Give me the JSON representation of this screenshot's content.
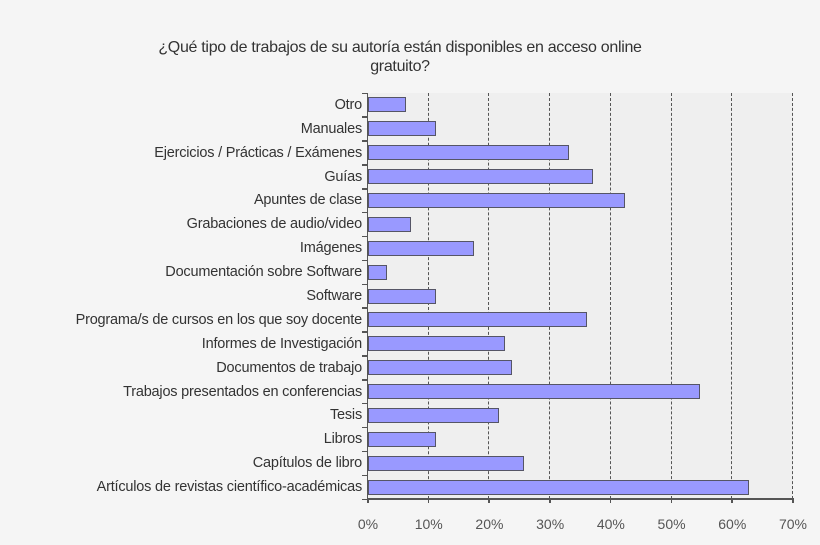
{
  "chart_data": {
    "type": "bar",
    "orientation": "horizontal",
    "title": "¿Qué tipo de trabajos de su autoría están disponibles en acceso online gratuito?",
    "title_lines": [
      "¿Qué tipo de trabajos de su autoría están disponibles en acceso online",
      "gratuito?"
    ],
    "xlabel": "",
    "ylabel": "",
    "xlim": [
      0,
      70
    ],
    "x_ticks": [
      "0%",
      "10%",
      "20%",
      "30%",
      "40%",
      "50%",
      "60%",
      "70%"
    ],
    "grid": "vertical dashed",
    "legend": "none",
    "bar_color": "#9999ff",
    "bar_border_color": "#555566",
    "categories": [
      "Otro",
      "Manuales",
      "Ejercicios / Prácticas / Exámenes",
      "Guías",
      "Apuntes de clase",
      "Grabaciones de audio/video",
      "Imágenes",
      "Documentación sobre Software",
      "Software",
      "Programa/s de cursos en los que soy docente",
      "Informes de Investigación",
      "Documentos de trabajo",
      "Trabajos presentados en conferencias",
      "Tesis",
      "Libros",
      "Capítulos de libro",
      "Artículos de revistas científico-académicas"
    ],
    "values": [
      6.3,
      11.2,
      33.1,
      37.1,
      42.3,
      7.1,
      17.5,
      3.1,
      11.2,
      36.1,
      22.6,
      23.7,
      54.7,
      21.6,
      11.2,
      25.7,
      62.8
    ],
    "unit": "%"
  }
}
